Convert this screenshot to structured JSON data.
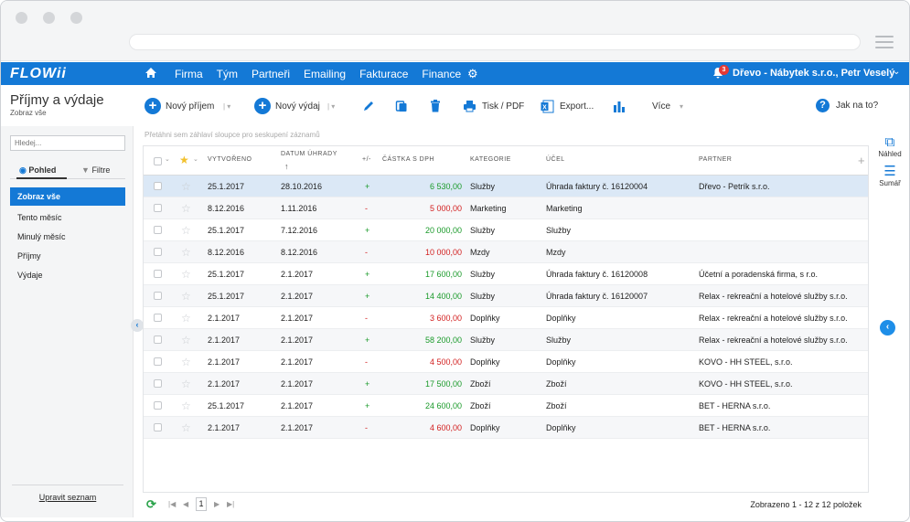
{
  "nav": {
    "logo": "FLOWii",
    "menu": [
      "Firma",
      "Tým",
      "Partneři",
      "Emailing",
      "Fakturace",
      "Finance"
    ],
    "notification_count": "3",
    "user": "Dřevo - Nábytek s.r.o., Petr Veselý"
  },
  "page": {
    "title": "Příjmy a výdaje",
    "subtitle": "Zobraz vše"
  },
  "toolbar": {
    "new_income": "Nový příjem",
    "new_expense": "Nový výdaj",
    "print": "Tisk / PDF",
    "export": "Export...",
    "more": "Více",
    "help": "Jak na to?"
  },
  "sidebar": {
    "search_placeholder": "Hledej...",
    "tab_view": "Pohled",
    "tab_filter": "Filtre",
    "items": [
      "Zobraz vše",
      "Tento měsíc",
      "Minulý měsíc",
      "Příjmy",
      "Výdaje"
    ],
    "edit_list": "Upravit seznam"
  },
  "grid": {
    "group_hint": "Přetáhni sem záhlaví sloupce pro seskupení záznamů",
    "headers": {
      "created": "VYTVOŘENO",
      "due": "DATUM ÚHRADY",
      "sign": "+/-",
      "amount": "ČÁSTKA S DPH",
      "category": "KATEGORIE",
      "purpose": "ÚČEL",
      "partner": "PARTNER"
    },
    "rows": [
      {
        "created": "25.1.2017",
        "due": "28.10.2016",
        "sign": "+",
        "amount": "6 530,00",
        "category": "Služby",
        "purpose": "Úhrada faktury č. 16120004",
        "partner": "Dřevo - Petrík s.r.o."
      },
      {
        "created": "8.12.2016",
        "due": "1.11.2016",
        "sign": "-",
        "amount": "5 000,00",
        "category": "Marketing",
        "purpose": "Marketing",
        "partner": ""
      },
      {
        "created": "25.1.2017",
        "due": "7.12.2016",
        "sign": "+",
        "amount": "20 000,00",
        "category": "Služby",
        "purpose": "Služby",
        "partner": ""
      },
      {
        "created": "8.12.2016",
        "due": "8.12.2016",
        "sign": "-",
        "amount": "10 000,00",
        "category": "Mzdy",
        "purpose": "Mzdy",
        "partner": ""
      },
      {
        "created": "25.1.2017",
        "due": "2.1.2017",
        "sign": "+",
        "amount": "17 600,00",
        "category": "Služby",
        "purpose": "Úhrada faktury č. 16120008",
        "partner": "Účetní a poradenská firma, s r.o."
      },
      {
        "created": "25.1.2017",
        "due": "2.1.2017",
        "sign": "+",
        "amount": "14 400,00",
        "category": "Služby",
        "purpose": "Úhrada faktury č. 16120007",
        "partner": "Relax - rekreační a hotelové služby s.r.o."
      },
      {
        "created": "2.1.2017",
        "due": "2.1.2017",
        "sign": "-",
        "amount": "3 600,00",
        "category": "Doplňky",
        "purpose": "Doplňky",
        "partner": "Relax - rekreační a hotelové služby s.r.o."
      },
      {
        "created": "2.1.2017",
        "due": "2.1.2017",
        "sign": "+",
        "amount": "58 200,00",
        "category": "Služby",
        "purpose": "Služby",
        "partner": "Relax - rekreační a hotelové služby s.r.o."
      },
      {
        "created": "2.1.2017",
        "due": "2.1.2017",
        "sign": "-",
        "amount": "4 500,00",
        "category": "Doplňky",
        "purpose": "Doplňky",
        "partner": "KOVO - HH STEEL, s.r.o."
      },
      {
        "created": "2.1.2017",
        "due": "2.1.2017",
        "sign": "+",
        "amount": "17 500,00",
        "category": "Zboží",
        "purpose": "Zboží",
        "partner": "KOVO - HH STEEL, s.r.o."
      },
      {
        "created": "25.1.2017",
        "due": "2.1.2017",
        "sign": "+",
        "amount": "24 600,00",
        "category": "Zboží",
        "purpose": "Zboží",
        "partner": "BET - HERNA s.r.o."
      },
      {
        "created": "2.1.2017",
        "due": "2.1.2017",
        "sign": "-",
        "amount": "4 600,00",
        "category": "Doplňky",
        "purpose": "Doplňky",
        "partner": "BET - HERNA s.r.o."
      }
    ]
  },
  "pager": {
    "page": "1",
    "info": "Zobrazeno 1 - 12 z 12 položek"
  },
  "right_panel": {
    "preview": "Náhled",
    "summary": "Sumář"
  },
  "colors": {
    "primary": "#1479d6",
    "positive": "#1a9a2a",
    "negative": "#d21f1f",
    "selected_row": "#dbe8f6"
  }
}
